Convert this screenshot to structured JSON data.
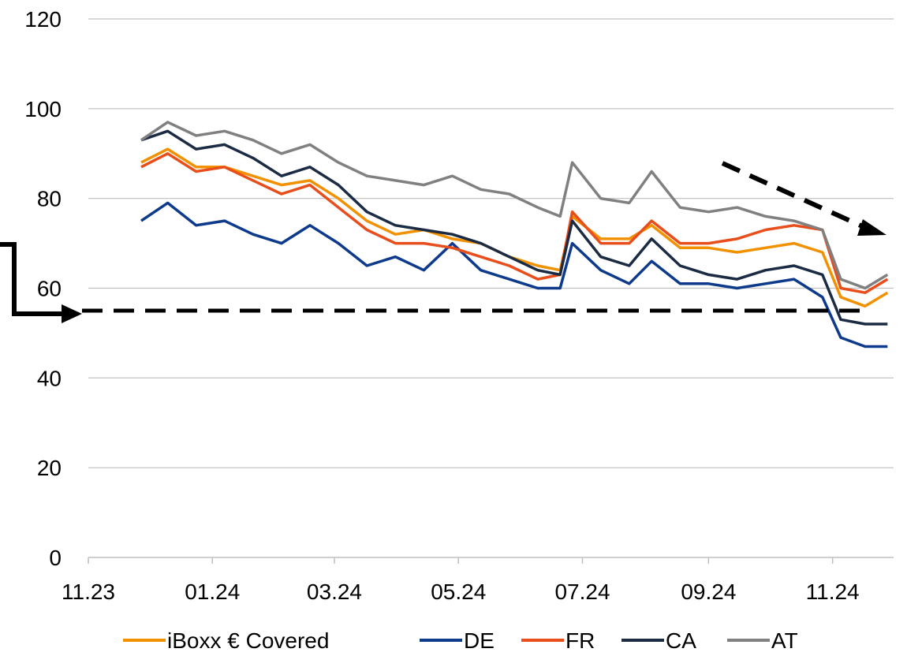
{
  "chart_data": {
    "type": "line",
    "x_ticks": [
      "11.23",
      "01.24",
      "03.24",
      "05.24",
      "07.24",
      "09.24",
      "11.24"
    ],
    "y_ticks": [
      "0",
      "20",
      "40",
      "60",
      "80",
      "100",
      "120"
    ],
    "xlim": [
      "2023-11-01",
      "2024-12-01"
    ],
    "ylim": [
      0,
      120
    ],
    "grid": "horizontal",
    "legend_position": "bottom",
    "reference_level": 55,
    "x": [
      "2023-11-27",
      "2023-12-10",
      "2023-12-24",
      "2024-01-07",
      "2024-01-21",
      "2024-02-04",
      "2024-02-18",
      "2024-03-03",
      "2024-03-17",
      "2024-03-31",
      "2024-04-14",
      "2024-04-28",
      "2024-05-12",
      "2024-05-26",
      "2024-06-09",
      "2024-06-20",
      "2024-06-26",
      "2024-07-10",
      "2024-07-24",
      "2024-08-04",
      "2024-08-18",
      "2024-09-01",
      "2024-09-15",
      "2024-09-29",
      "2024-10-13",
      "2024-10-27",
      "2024-11-05",
      "2024-11-17",
      "2024-11-28"
    ],
    "series": [
      {
        "name": "iBoxx € Covered",
        "color": "#F29100",
        "values": [
          88,
          91,
          87,
          87,
          85,
          83,
          84,
          80,
          75,
          72,
          73,
          71,
          70,
          67,
          65,
          64,
          76,
          71,
          71,
          74,
          69,
          69,
          68,
          69,
          70,
          68,
          58,
          56,
          59
        ]
      },
      {
        "name": "DE",
        "color": "#0E3A8C",
        "values": [
          75,
          79,
          74,
          75,
          72,
          70,
          74,
          70,
          65,
          67,
          64,
          70,
          64,
          62,
          60,
          60,
          70,
          64,
          61,
          66,
          61,
          61,
          60,
          61,
          62,
          58,
          49,
          47,
          47
        ]
      },
      {
        "name": "FR",
        "color": "#E84E1B",
        "values": [
          87,
          90,
          86,
          87,
          84,
          81,
          83,
          78,
          73,
          70,
          70,
          69,
          67,
          65,
          62,
          63,
          77,
          70,
          70,
          75,
          70,
          70,
          71,
          73,
          74,
          73,
          60,
          59,
          62
        ]
      },
      {
        "name": "CA",
        "color": "#1B2B44",
        "values": [
          93,
          95,
          91,
          92,
          89,
          85,
          87,
          83,
          77,
          74,
          73,
          72,
          70,
          67,
          64,
          63,
          75,
          67,
          65,
          71,
          65,
          63,
          62,
          64,
          65,
          63,
          53,
          52,
          52
        ]
      },
      {
        "name": "AT",
        "color": "#808080",
        "values": [
          93,
          97,
          94,
          95,
          93,
          90,
          92,
          88,
          85,
          84,
          83,
          85,
          82,
          81,
          78,
          76,
          88,
          80,
          79,
          86,
          78,
          77,
          78,
          76,
          75,
          73,
          62,
          60,
          63
        ]
      }
    ]
  }
}
